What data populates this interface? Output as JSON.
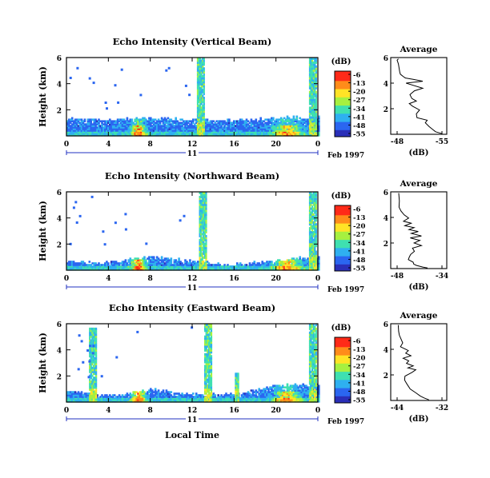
{
  "figure": {
    "xlabel": "Local Time",
    "date_label": "Feb 1997",
    "day_label": "11"
  },
  "colorbar": {
    "unit": "(dB)",
    "ticks": [
      "-6",
      "-13",
      "-20",
      "-27",
      "-34",
      "-41",
      "-48",
      "-55"
    ],
    "colors": [
      "#ff2a18",
      "#ff8c1a",
      "#ffe326",
      "#a6f040",
      "#3fe0b0",
      "#2fb0f0",
      "#2b66f0",
      "#2a2fb8"
    ]
  },
  "chart_data": [
    {
      "type": "heatmap",
      "title": "Echo Intensity (Vertical Beam)",
      "ylabel": "Height (km)",
      "x_ticks": [
        "0",
        "4",
        "8",
        "12",
        "16",
        "20",
        "0"
      ],
      "y_ticks": [
        "6",
        "4",
        "2"
      ],
      "xlim": [
        0,
        24
      ],
      "ylim": [
        0,
        6
      ],
      "z_unit": "dB",
      "zlim": [
        -55,
        -6
      ],
      "notable_features": [
        {
          "hour": 12.8,
          "top_km": 6.0,
          "desc": "tall plume"
        },
        {
          "hour": 23.5,
          "top_km": 6.0,
          "desc": "tall plume"
        }
      ],
      "boundary_layer_top_km": [
        [
          0,
          1.3
        ],
        [
          4,
          1.2
        ],
        [
          8,
          1.3
        ],
        [
          12,
          1.2
        ],
        [
          16,
          1.1
        ],
        [
          20,
          1.3
        ],
        [
          24,
          1.4
        ]
      ]
    },
    {
      "type": "heatmap",
      "title": "Echo Intensity (Northward Beam)",
      "ylabel": "Height (km)",
      "x_ticks": [
        "0",
        "4",
        "8",
        "12",
        "16",
        "20",
        "0"
      ],
      "y_ticks": [
        "6",
        "4",
        "2"
      ],
      "xlim": [
        0,
        24
      ],
      "ylim": [
        0,
        6
      ],
      "z_unit": "dB",
      "zlim": [
        -55,
        -6
      ],
      "notable_features": [
        {
          "hour": 13.0,
          "top_km": 6.0,
          "desc": "tall plume"
        },
        {
          "hour": 23.5,
          "top_km": 6.0,
          "desc": "tall plume"
        }
      ],
      "boundary_layer_top_km": [
        [
          0,
          0.6
        ],
        [
          4,
          0.5
        ],
        [
          8,
          1.0
        ],
        [
          12,
          0.6
        ],
        [
          16,
          0.4
        ],
        [
          20,
          0.7
        ],
        [
          24,
          1.0
        ]
      ]
    },
    {
      "type": "heatmap",
      "title": "Echo Intensity (Eastward Beam)",
      "ylabel": "Height (km)",
      "x_ticks": [
        "0",
        "4",
        "8",
        "12",
        "16",
        "20",
        "0"
      ],
      "y_ticks": [
        "6",
        "4",
        "2"
      ],
      "xlim": [
        0,
        24
      ],
      "ylim": [
        0,
        6
      ],
      "z_unit": "dB",
      "zlim": [
        -55,
        -6
      ],
      "notable_features": [
        {
          "hour": 2.5,
          "top_km": 5.6,
          "desc": "tall plume"
        },
        {
          "hour": 13.5,
          "top_km": 6.0,
          "desc": "tall plume"
        },
        {
          "hour": 16.2,
          "top_km": 2.2,
          "desc": "short column"
        },
        {
          "hour": 23.5,
          "top_km": 6.0,
          "desc": "tall plume"
        }
      ],
      "boundary_layer_top_km": [
        [
          0,
          0.8
        ],
        [
          4,
          0.4
        ],
        [
          8,
          0.9
        ],
        [
          12,
          0.5
        ],
        [
          16,
          0.5
        ],
        [
          20,
          1.2
        ],
        [
          24,
          1.3
        ]
      ]
    },
    {
      "type": "line",
      "title": "Average",
      "xlabel": "(dB)",
      "x_ticks": [
        "-48",
        "-55"
      ],
      "y_ticks": [
        "6",
        "4",
        "2"
      ],
      "xlim": [
        -48,
        -55
      ],
      "ylim": [
        0,
        6
      ],
      "x": [
        -48.2,
        -48.0,
        -48.2,
        -48.3,
        -48.4,
        -48.5,
        -49.0,
        -49.3,
        -50.5,
        -52.0,
        -49.4,
        -52.0,
        -50.7,
        -50.0,
        -50.3,
        -51.0,
        -49.9,
        -50.4,
        -51.5,
        -51.0,
        -51.1,
        -52.7,
        -52.4,
        -53.0,
        -53.5,
        -54.0,
        -55.0
      ],
      "y": [
        5.9,
        5.8,
        5.5,
        5.2,
        4.9,
        4.7,
        4.5,
        4.4,
        4.3,
        4.15,
        4.0,
        3.6,
        3.4,
        3.1,
        2.8,
        2.6,
        2.4,
        2.2,
        1.9,
        1.6,
        1.3,
        1.1,
        0.9,
        0.6,
        0.4,
        0.2,
        0.05
      ]
    },
    {
      "type": "line",
      "title": "Average",
      "xlabel": "(dB)",
      "x_ticks": [
        "-48",
        "-34"
      ],
      "y_ticks": [
        "6",
        "4",
        "2"
      ],
      "xlim": [
        -48,
        -34
      ],
      "ylim": [
        0,
        6
      ],
      "x": [
        -47.5,
        -47.3,
        -47.4,
        -46.8,
        -45.8,
        -44.4,
        -46.0,
        -43.6,
        -45.6,
        -42.7,
        -44.3,
        -41.4,
        -43.6,
        -40.4,
        -43.9,
        -40.9,
        -42.7,
        -40.4,
        -43.2,
        -42.6,
        -43.8,
        -44.2,
        -44.5,
        -43.0,
        -42.8,
        -42.0,
        -40.0,
        -38.5
      ],
      "y": [
        5.9,
        5.3,
        4.8,
        4.5,
        4.2,
        3.95,
        3.7,
        3.55,
        3.35,
        3.2,
        3.05,
        2.9,
        2.75,
        2.55,
        2.4,
        2.2,
        2.0,
        1.8,
        1.6,
        1.35,
        1.1,
        0.9,
        0.7,
        0.5,
        0.35,
        0.25,
        0.12,
        0.05
      ]
    },
    {
      "type": "line",
      "title": "Average",
      "xlabel": "(dB)",
      "x_ticks": [
        "-44",
        "-32"
      ],
      "y_ticks": [
        "6",
        "4",
        "2"
      ],
      "xlim": [
        -44,
        -32
      ],
      "ylim": [
        0,
        6
      ],
      "x": [
        -43.7,
        -43.6,
        -43.4,
        -42.5,
        -43.1,
        -41.0,
        -41.7,
        -40.3,
        -42.4,
        -40.9,
        -41.5,
        -39.7,
        -41.1,
        -39.0,
        -40.0,
        -41.9,
        -42.0,
        -41.4,
        -40.5,
        -39.0,
        -37.8,
        -36.8,
        -35.5
      ],
      "y": [
        5.9,
        5.4,
        5.1,
        4.5,
        4.2,
        3.9,
        3.7,
        3.5,
        3.3,
        3.1,
        2.9,
        2.7,
        2.55,
        2.4,
        2.2,
        1.9,
        1.6,
        1.3,
        0.9,
        0.6,
        0.35,
        0.2,
        0.05
      ]
    }
  ]
}
